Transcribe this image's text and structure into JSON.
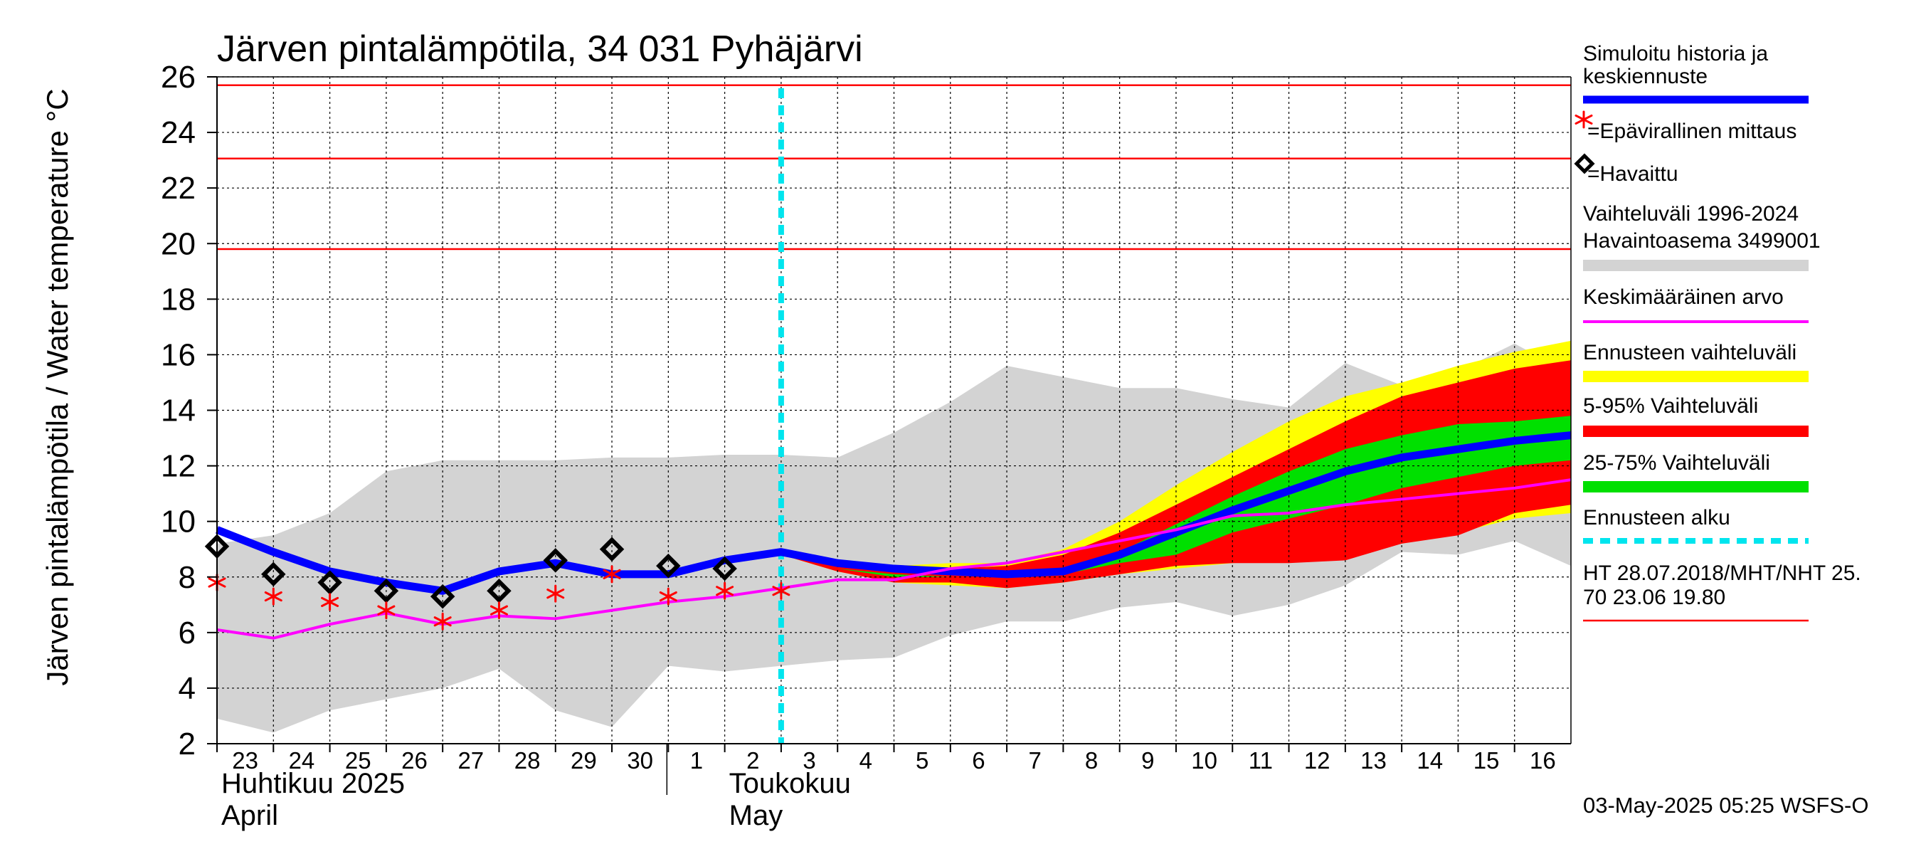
{
  "chart_data": {
    "type": "area",
    "title": "Järven pintalämpötila, 34 031 Pyhäjärvi",
    "ylabel": "Järven pintalämpötila / Water temperature °C",
    "ylim": [
      2,
      26
    ],
    "yticks": [
      2,
      4,
      6,
      8,
      10,
      12,
      14,
      16,
      18,
      20,
      22,
      24,
      26
    ],
    "xlim": [
      0,
      24
    ],
    "x_ticks": [
      {
        "x": 0,
        "label": "23"
      },
      {
        "x": 1,
        "label": "24"
      },
      {
        "x": 2,
        "label": "25"
      },
      {
        "x": 3,
        "label": "26"
      },
      {
        "x": 4,
        "label": "27"
      },
      {
        "x": 5,
        "label": "28"
      },
      {
        "x": 6,
        "label": "29"
      },
      {
        "x": 7,
        "label": "30"
      },
      {
        "x": 8,
        "label": "1"
      },
      {
        "x": 9,
        "label": "2"
      },
      {
        "x": 10,
        "label": "3"
      },
      {
        "x": 11,
        "label": "4"
      },
      {
        "x": 12,
        "label": "5"
      },
      {
        "x": 13,
        "label": "6"
      },
      {
        "x": 14,
        "label": "7"
      },
      {
        "x": 15,
        "label": "8"
      },
      {
        "x": 16,
        "label": "9"
      },
      {
        "x": 17,
        "label": "10"
      },
      {
        "x": 18,
        "label": "11"
      },
      {
        "x": 19,
        "label": "12"
      },
      {
        "x": 20,
        "label": "13"
      },
      {
        "x": 21,
        "label": "14"
      },
      {
        "x": 22,
        "label": "15"
      },
      {
        "x": 23,
        "label": "16"
      }
    ],
    "month_labels": [
      {
        "x": 0,
        "line1": "Huhtikuu  2025",
        "line2": "April"
      },
      {
        "x": 9,
        "line1": "Toukokuu",
        "line2": "May"
      }
    ],
    "forecast_start_x": 10,
    "hlines": [
      {
        "label": "HT 28.07.2018",
        "y": 25.7
      },
      {
        "label": "MHT",
        "y": 23.06
      },
      {
        "label": "NHT",
        "y": 19.8
      }
    ],
    "x": [
      0,
      1,
      2,
      3,
      4,
      5,
      6,
      7,
      8,
      9,
      10,
      11,
      12,
      13,
      14,
      15,
      16,
      17,
      18,
      19,
      20,
      21,
      22,
      23,
      24
    ],
    "history_range": {
      "upper": [
        9.2,
        9.5,
        10.3,
        11.8,
        12.2,
        12.2,
        12.2,
        12.3,
        12.3,
        12.4,
        12.4,
        12.3,
        13.2,
        14.3,
        15.6,
        15.2,
        14.8,
        14.8,
        14.4,
        14.1,
        15.7,
        14.9,
        15.4,
        16.4,
        15.3
      ],
      "lower": [
        2.9,
        2.4,
        3.2,
        3.6,
        4.0,
        4.7,
        3.2,
        2.6,
        4.8,
        4.6,
        4.8,
        5.0,
        5.1,
        5.9,
        6.4,
        6.4,
        6.9,
        7.1,
        6.6,
        7.0,
        7.7,
        8.9,
        8.8,
        9.3,
        8.4
      ]
    },
    "forecast_x": [
      10,
      11,
      12,
      13,
      14,
      15,
      16,
      17,
      18,
      19,
      20,
      21,
      22,
      23,
      24
    ],
    "forecast_range": {
      "upper": [
        8.8,
        8.5,
        8.4,
        8.5,
        8.5,
        9.0,
        10.0,
        11.3,
        12.5,
        13.6,
        14.5,
        15.0,
        15.6,
        16.1,
        16.5
      ],
      "lower": [
        8.8,
        8.2,
        7.8,
        7.7,
        7.6,
        7.8,
        8.1,
        8.3,
        8.5,
        8.6,
        8.8,
        9.2,
        9.6,
        10.1,
        10.3
      ]
    },
    "forecast_5_95": {
      "upper": [
        8.8,
        8.4,
        8.2,
        8.3,
        8.4,
        8.8,
        9.6,
        10.6,
        11.6,
        12.6,
        13.6,
        14.5,
        15.0,
        15.5,
        15.8
      ],
      "lower": [
        8.8,
        8.2,
        7.8,
        7.8,
        7.6,
        7.8,
        8.1,
        8.4,
        8.5,
        8.5,
        8.6,
        9.2,
        9.5,
        10.3,
        10.6
      ]
    },
    "forecast_25_75": {
      "upper": [
        8.8,
        8.3,
        8.1,
        8.0,
        8.0,
        8.3,
        8.9,
        9.9,
        10.9,
        11.8,
        12.6,
        13.1,
        13.5,
        13.6,
        13.8
      ],
      "lower": [
        8.8,
        8.3,
        8.0,
        8.0,
        8.0,
        8.1,
        8.5,
        8.8,
        9.6,
        10.1,
        10.6,
        11.2,
        11.6,
        12.0,
        12.2
      ]
    },
    "forecast_inner_lower": {
      "upper": [
        8.8,
        8.3,
        8.1,
        8.0,
        8.0,
        8.3,
        8.9,
        9.9,
        10.9,
        11.8,
        12.6,
        13.1,
        13.5,
        13.6,
        13.8
      ],
      "lower": [
        8.8,
        8.3,
        8.0,
        8.0,
        8.0,
        8.1,
        8.5,
        8.8,
        9.6,
        10.1,
        10.6,
        11.2,
        11.6,
        12.0,
        12.2
      ]
    },
    "series": [
      {
        "name": "Simuloitu historia ja keskiennuste",
        "color": "#0000ff",
        "x": [
          0,
          1,
          2,
          3,
          4,
          5,
          6,
          7,
          8,
          9,
          10,
          11,
          12,
          13,
          14,
          15,
          16,
          17,
          18,
          19,
          20,
          21,
          22,
          23,
          24
        ],
        "values": [
          9.7,
          8.9,
          8.2,
          7.8,
          7.5,
          8.2,
          8.5,
          8.1,
          8.1,
          8.6,
          8.9,
          8.5,
          8.3,
          8.2,
          8.1,
          8.2,
          8.8,
          9.6,
          10.4,
          11.1,
          11.8,
          12.3,
          12.6,
          12.9,
          13.1
        ]
      },
      {
        "name": "Keskimääräinen arvo",
        "color": "#ff00ff",
        "x": [
          0,
          1,
          2,
          3,
          4,
          5,
          6,
          7,
          8,
          9,
          10,
          11,
          12,
          13,
          14,
          15,
          16,
          17,
          18,
          19,
          20,
          21,
          22,
          23,
          24
        ],
        "values": [
          6.1,
          5.8,
          6.3,
          6.7,
          6.3,
          6.6,
          6.5,
          6.8,
          7.1,
          7.3,
          7.6,
          7.9,
          7.9,
          8.3,
          8.5,
          8.9,
          9.3,
          9.7,
          10.2,
          10.3,
          10.6,
          10.8,
          11.0,
          11.2,
          11.5
        ]
      },
      {
        "name": "=Havaittu",
        "type": "scatter",
        "color": "#000000",
        "x": [
          0,
          1,
          2,
          3,
          4,
          5,
          6,
          7,
          8,
          9
        ],
        "values": [
          9.1,
          8.1,
          7.8,
          7.5,
          7.3,
          7.5,
          8.6,
          9.0,
          8.4,
          8.3
        ]
      },
      {
        "name": "=Epävirallinen mittaus",
        "type": "scatter",
        "color": "#ff0000",
        "x": [
          0,
          1,
          2,
          3,
          4,
          5,
          6,
          7,
          8,
          9,
          10
        ],
        "values": [
          7.8,
          7.3,
          7.1,
          6.8,
          6.4,
          6.8,
          7.4,
          8.1,
          7.3,
          7.5,
          7.5
        ]
      }
    ],
    "legend": [
      {
        "line1": "Simuloitu historia ja",
        "line2": "keskiennuste",
        "color": "#0000ff",
        "style": "line"
      },
      {
        "line1": "=Epävirallinen mittaus",
        "color": "#ff0000",
        "style": "star"
      },
      {
        "line1": "=Havaittu",
        "color": "#000000",
        "style": "diamond"
      },
      {
        "line1": "Vaihteluväli 1996-2024",
        "line2": " Havaintoasema 3499001",
        "color": "#d3d3d3",
        "style": "band"
      },
      {
        "line1": "Keskimääräinen arvo",
        "color": "#ff00ff",
        "style": "thin"
      },
      {
        "line1": "Ennusteen vaihteluväli",
        "color": "#ffff00",
        "style": "band"
      },
      {
        "line1": "5-95% Vaihteluväli",
        "color": "#ff0000",
        "style": "band"
      },
      {
        "line1": "25-75% Vaihteluväli",
        "color": "#00e000",
        "style": "band"
      },
      {
        "line1": "Ennusteen alku",
        "color": "#00e5ee",
        "style": "dashed"
      },
      {
        "line1": "HT 28.07.2018/MHT/NHT 25.",
        "line2": "70 23.06 19.80",
        "color": "#ff0000",
        "style": "hairline"
      }
    ],
    "footer": "03-May-2025 05:25 WSFS-O",
    "colors": {
      "history_band": "#d3d3d3",
      "forecast_range": "#ffff00",
      "forecast_5_95": "#ff0000",
      "forecast_25_75": "#00e000",
      "forecast_start": "#00e5ee",
      "limits": "#ff0000",
      "grid": "#000000"
    }
  }
}
